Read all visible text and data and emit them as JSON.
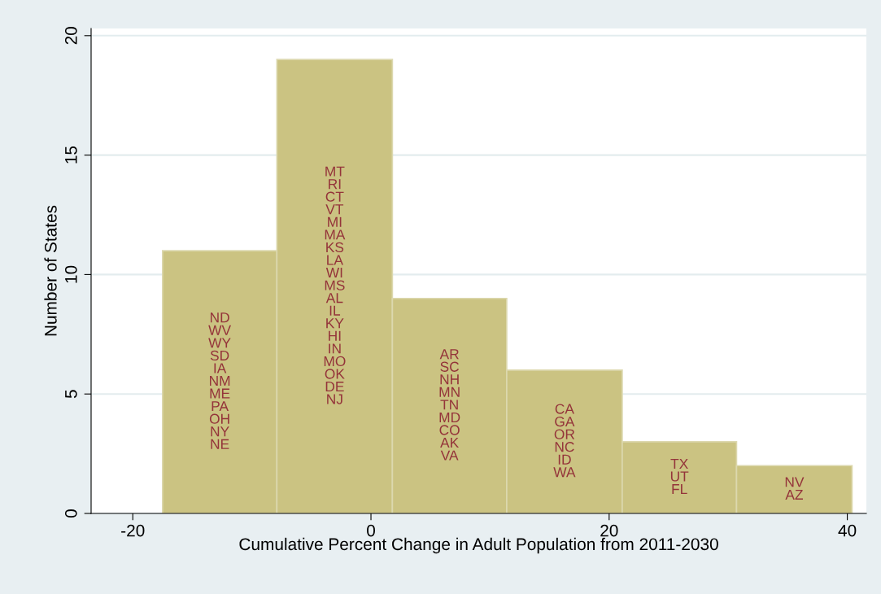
{
  "chart_data": {
    "type": "histogram",
    "xlabel": "Cumulative Percent Change in Adult Population from 2011-2030",
    "ylabel": "Number of States",
    "bins": [
      -17.5,
      -7.9,
      1.8,
      11.4,
      21.1,
      30.7,
      40.4
    ],
    "values": [
      11,
      19,
      9,
      6,
      3,
      2
    ],
    "color": "#cbc382",
    "xlim": [
      -23.5,
      41.6
    ],
    "xticks": [
      -20,
      0,
      20,
      40
    ],
    "ylim": [
      0,
      20.3
    ],
    "yticks": [
      0,
      5,
      10,
      15,
      20
    ],
    "grid": "y",
    "value_labels": [
      "ND\nWV\nWY\nSD\nIA\nNM\nME\nPA\nOH\nNY\nNE",
      "MT\nRI\nCT\nVT\nMI\nMA\nKS\nLA\nWI\nMS\nAL\nIL\nKY\nHI\nIN\nMO\nOK\nDE\nNJ",
      "AR\nSC\nNH\nMN\nTN\nMD\nCO\nAK\nVA",
      "CA\nGA\nOR\nNC\nID\nWA",
      "TX\nUT\nFL",
      "NV\nAZ"
    ]
  }
}
